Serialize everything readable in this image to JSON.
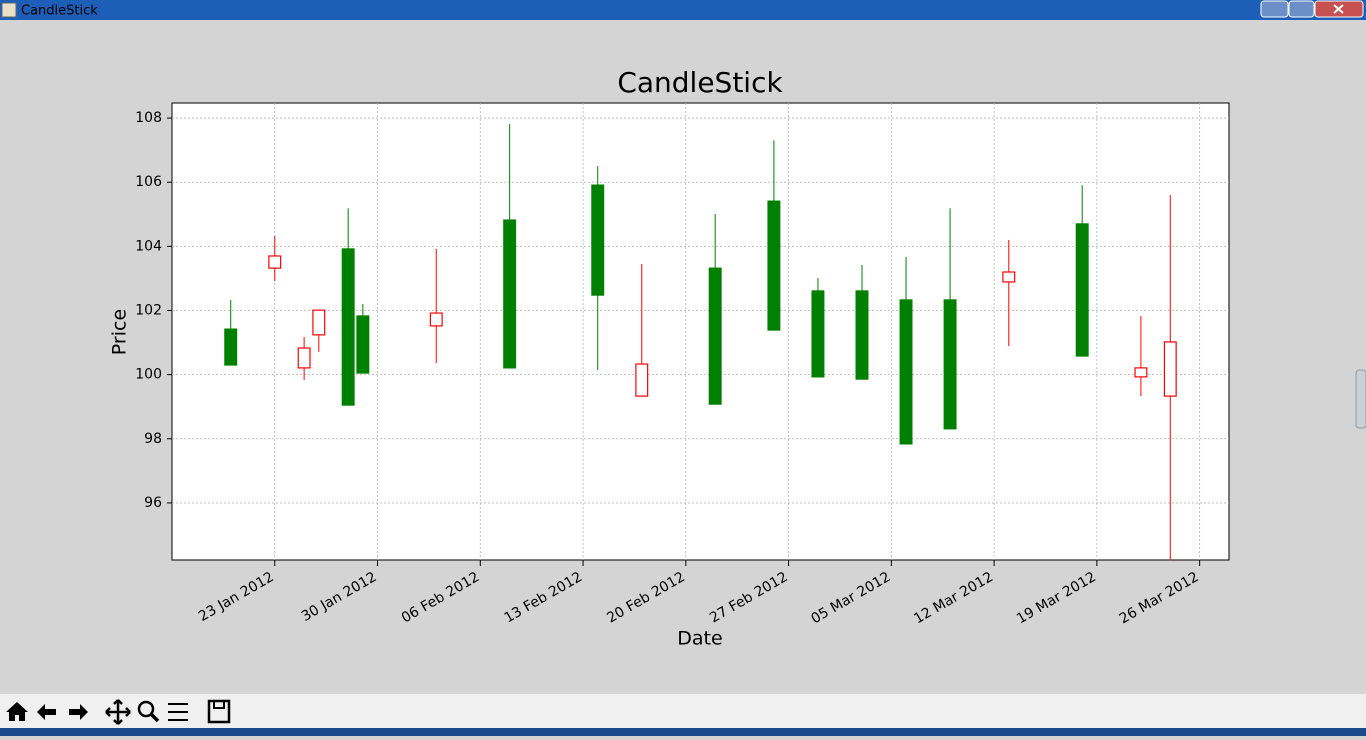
{
  "window": {
    "title": "CandleStick"
  },
  "chart_data": {
    "type": "candlestick",
    "title": "CandleStick",
    "x_label": "Date",
    "y_label": "Price",
    "x": [
      "2012-01-20",
      "2012-01-23",
      "2012-01-25",
      "2012-01-26",
      "2012-01-28",
      "2012-01-29",
      "2012-02-03",
      "2012-02-08",
      "2012-02-14",
      "2012-02-17",
      "2012-02-22",
      "2012-02-26",
      "2012-02-29",
      "2012-03-03",
      "2012-03-06",
      "2012-03-09",
      "2012-03-13",
      "2012-03-18",
      "2012-03-22",
      "2012-03-24"
    ],
    "open": [
      100.3,
      103.7,
      100.83,
      102.01,
      99.05,
      100.05,
      101.92,
      100.21,
      102.48,
      100.33,
      99.08,
      101.39,
      99.93,
      99.86,
      97.84,
      98.31,
      103.2,
      100.58,
      100.21,
      101.02
    ],
    "high": [
      102.33,
      104.32,
      101.17,
      102.01,
      105.19,
      102.2,
      103.92,
      107.81,
      106.5,
      103.45,
      105.01,
      107.31,
      103.01,
      103.42,
      103.67,
      105.19,
      104.2,
      105.91,
      101.83,
      105.6
    ],
    "low": [
      100.3,
      102.92,
      99.83,
      100.71,
      99.05,
      100.05,
      100.36,
      100.21,
      100.14,
      99.33,
      99.08,
      101.39,
      99.93,
      99.86,
      97.84,
      98.31,
      100.89,
      100.58,
      99.33,
      94.2
    ],
    "close": [
      101.42,
      103.32,
      100.21,
      101.24,
      103.92,
      101.83,
      101.52,
      104.82,
      105.91,
      99.33,
      103.32,
      105.41,
      102.61,
      102.61,
      102.33,
      102.33,
      102.89,
      104.7,
      99.93,
      99.33
    ],
    "color_up": "#008000",
    "color_down": "#ff0000",
    "xlim": [
      "2012-01-16",
      "2012-03-28"
    ],
    "xticks": [
      {
        "value": "2012-01-23",
        "label": "23 Jan 2012"
      },
      {
        "value": "2012-01-30",
        "label": "30 Jan 2012"
      },
      {
        "value": "2012-02-06",
        "label": "06 Feb 2012"
      },
      {
        "value": "2012-02-13",
        "label": "13 Feb 2012"
      },
      {
        "value": "2012-02-20",
        "label": "20 Feb 2012"
      },
      {
        "value": "2012-02-27",
        "label": "27 Feb 2012"
      },
      {
        "value": "2012-03-05",
        "label": "05 Mar 2012"
      },
      {
        "value": "2012-03-12",
        "label": "12 Mar 2012"
      },
      {
        "value": "2012-03-19",
        "label": "19 Mar 2012"
      },
      {
        "value": "2012-03-26",
        "label": "26 Mar 2012"
      }
    ],
    "ylim": [
      94.22,
      108.47
    ],
    "yticks": [
      96,
      98,
      100,
      102,
      104,
      106,
      108
    ],
    "grid": true
  }
}
